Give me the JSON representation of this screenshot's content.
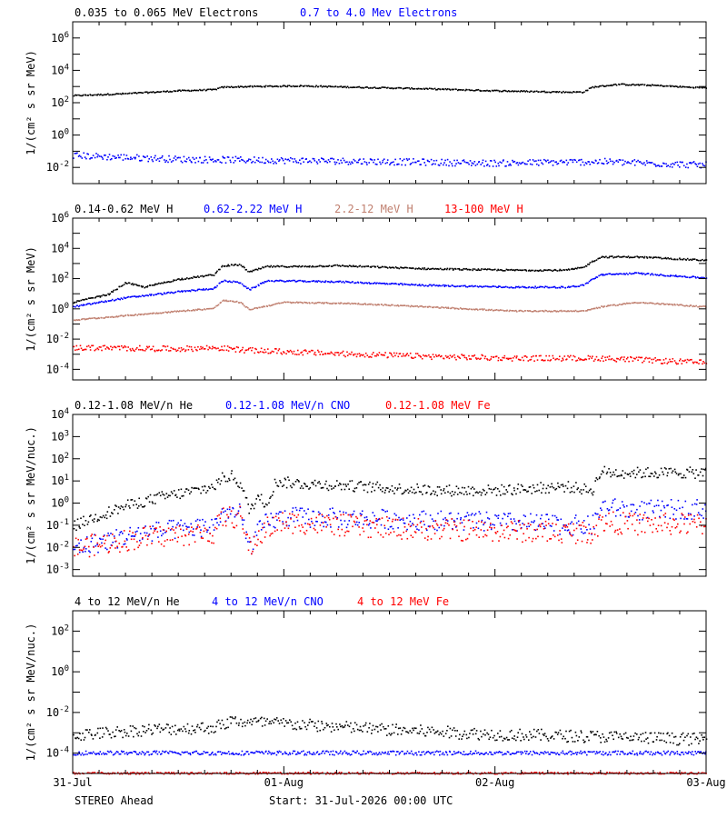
{
  "footer": {
    "spacecraft": "STEREO Ahead",
    "start_label": "Start: 31-Jul-2026 00:00 UTC"
  },
  "chart_data": [
    {
      "type": "scatter",
      "title": "",
      "ylabel": "1/(cm² s sr MeV)",
      "yscale": "log",
      "ylim": [
        0.001,
        10000000
      ],
      "yticks": [
        0.01,
        1,
        100,
        10000,
        1000000
      ],
      "xlim": [
        0,
        72
      ],
      "x_tick_labels": [],
      "legend": [
        {
          "name": "0.035 to 0.065 MeV Electrons",
          "color": "#000000"
        },
        {
          "name": "0.7 to 4.0 Mev Electrons",
          "color": "#0000ff"
        }
      ],
      "series": [
        {
          "name": "0.035 to 0.065 MeV Electrons",
          "color": "#000000",
          "scatter": 0.04,
          "x": [
            0,
            6,
            12,
            16,
            17,
            20,
            26,
            32,
            40,
            48,
            56,
            58,
            59,
            62,
            66,
            70,
            72
          ],
          "y": [
            300,
            400,
            600,
            700,
            1000,
            1100,
            1200,
            1000,
            800,
            600,
            500,
            500,
            1000,
            1500,
            1300,
            1000,
            900
          ]
        },
        {
          "name": "0.7 to 4.0 Mev Electrons",
          "color": "#0000ff",
          "scatter": 0.2,
          "x": [
            0,
            12,
            24,
            36,
            48,
            60,
            72
          ],
          "y": [
            0.06,
            0.035,
            0.03,
            0.025,
            0.02,
            0.025,
            0.015
          ]
        }
      ]
    },
    {
      "type": "scatter",
      "title": "",
      "ylabel": "1/(cm² s sr MeV)",
      "yscale": "log",
      "ylim": [
        2e-05,
        1000000
      ],
      "yticks": [
        0.0001,
        0.01,
        1,
        100,
        10000,
        1000000
      ],
      "xlim": [
        0,
        72
      ],
      "x_tick_labels": [],
      "legend": [
        {
          "name": "0.14-0.62 MeV H",
          "color": "#000000"
        },
        {
          "name": "0.62-2.22 MeV H",
          "color": "#0000ff"
        },
        {
          "name": "2.2-12 MeV H",
          "color": "#c08070"
        },
        {
          "name": "13-100 MeV H",
          "color": "#ff0000"
        }
      ],
      "series": [
        {
          "name": "0.14-0.62 MeV H",
          "color": "#000000",
          "scatter": 0.05,
          "x": [
            0,
            4,
            6,
            8,
            12,
            16,
            17,
            19,
            20,
            22,
            26,
            30,
            40,
            50,
            56,
            58,
            59,
            60,
            64,
            72
          ],
          "y": [
            3,
            10,
            60,
            30,
            100,
            200,
            800,
            900,
            300,
            700,
            700,
            800,
            500,
            400,
            400,
            600,
            1500,
            3000,
            3000,
            1800
          ]
        },
        {
          "name": "0.62-2.22 MeV H",
          "color": "#0000ff",
          "scatter": 0.05,
          "x": [
            0,
            6,
            12,
            16,
            17,
            19,
            20,
            22,
            30,
            40,
            50,
            56,
            58,
            59,
            60,
            64,
            72
          ],
          "y": [
            1.5,
            6,
            15,
            25,
            80,
            60,
            20,
            80,
            70,
            40,
            30,
            30,
            40,
            100,
            200,
            250,
            120
          ]
        },
        {
          "name": "2.2-12 MeV H",
          "color": "#c08070",
          "scatter": 0.04,
          "x": [
            0,
            8,
            16,
            17,
            19,
            20,
            24,
            32,
            40,
            50,
            56,
            58,
            60,
            64,
            72
          ],
          "y": [
            0.2,
            0.5,
            1.2,
            4,
            3,
            1,
            3,
            2.5,
            1.5,
            0.8,
            0.8,
            0.8,
            1.5,
            3,
            1.5
          ]
        },
        {
          "name": "13-100 MeV H",
          "color": "#ff0000",
          "scatter": 0.18,
          "x": [
            0,
            12,
            16,
            20,
            30,
            40,
            50,
            60,
            72
          ],
          "y": [
            0.003,
            0.0025,
            0.003,
            0.002,
            0.0012,
            0.0008,
            0.0006,
            0.0006,
            0.0003
          ]
        }
      ]
    },
    {
      "type": "scatter",
      "title": "",
      "ylabel": "1/(cm² s sr MeV/nuc.)",
      "yscale": "log",
      "ylim": [
        0.0005,
        10000
      ],
      "yticks": [
        0.001,
        0.01,
        0.1,
        1,
        10,
        100,
        1000,
        10000
      ],
      "xlim": [
        0,
        72
      ],
      "x_tick_labels": [],
      "legend": [
        {
          "name": "0.12-1.08 MeV/n He",
          "color": "#000000"
        },
        {
          "name": "0.12-1.08 MeV/n CNO",
          "color": "#0000ff"
        },
        {
          "name": "0.12-1.08 MeV Fe",
          "color": "#ff0000"
        }
      ],
      "series": [
        {
          "name": "0.12-1.08 MeV/n He",
          "color": "#000000",
          "scatter": 0.25,
          "x": [
            0,
            3,
            6,
            10,
            14,
            16,
            17,
            18,
            19,
            20,
            21,
            22,
            23,
            26,
            30,
            36,
            42,
            48,
            56,
            59,
            60,
            61,
            64,
            72
          ],
          "y": [
            0.1,
            0.3,
            0.8,
            2,
            4,
            6,
            15,
            18,
            8,
            0.5,
            2,
            1,
            10,
            8,
            7,
            5,
            4,
            4,
            6,
            4,
            30,
            25,
            25,
            25
          ]
        },
        {
          "name": "0.12-1.08 MeV/n CNO",
          "color": "#0000ff",
          "scatter": 0.45,
          "x": [
            0,
            8,
            16,
            17,
            19,
            20,
            21,
            22,
            24,
            36,
            48,
            59,
            60,
            64,
            72
          ],
          "y": [
            0.01,
            0.05,
            0.1,
            0.4,
            0.35,
            0.01,
            0.05,
            0.15,
            0.25,
            0.2,
            0.15,
            0.1,
            0.7,
            0.5,
            0.6
          ]
        },
        {
          "name": "0.12-1.08 MeV Fe",
          "color": "#ff0000",
          "scatter": 0.5,
          "x": [
            0,
            8,
            16,
            17,
            19,
            20,
            21,
            22,
            24,
            36,
            48,
            59,
            60,
            64,
            72
          ],
          "y": [
            0.01,
            0.03,
            0.05,
            0.25,
            0.25,
            0.01,
            0.03,
            0.08,
            0.15,
            0.08,
            0.06,
            0.05,
            0.15,
            0.12,
            0.12
          ]
        }
      ]
    },
    {
      "type": "scatter",
      "title": "",
      "ylabel": "1/(cm² s sr MeV/nuc.)",
      "yscale": "log",
      "ylim": [
        1e-05,
        1000
      ],
      "yticks": [
        0.0001,
        0.01,
        1,
        100
      ],
      "xlim": [
        0,
        72
      ],
      "x_tick_labels": [
        "31-Jul",
        "01-Aug",
        "02-Aug",
        "03-Aug"
      ],
      "legend": [
        {
          "name": "4 to 12 MeV/n He",
          "color": "#000000"
        },
        {
          "name": "4 to 12 MeV/n CNO",
          "color": "#0000ff"
        },
        {
          "name": "4 to 12 MeV Fe",
          "color": "#ff0000"
        }
      ],
      "series": [
        {
          "name": "4 to 12 MeV/n He",
          "color": "#000000",
          "scatter": 0.3,
          "x": [
            0,
            8,
            16,
            18,
            24,
            36,
            48,
            60,
            72
          ],
          "y": [
            0.0008,
            0.0015,
            0.002,
            0.004,
            0.003,
            0.0015,
            0.0009,
            0.0007,
            0.0005
          ]
        },
        {
          "name": "4 to 12 MeV/n CNO",
          "color": "#0000ff",
          "scatter": 0.1,
          "x": [
            0,
            72
          ],
          "y": [
            0.00011,
            0.00011
          ]
        },
        {
          "name": "4 to 12 MeV Fe",
          "color": "#ff0000",
          "scatter": 0.05,
          "x": [
            0,
            72
          ],
          "y": [
            1.1e-05,
            1.1e-05
          ]
        }
      ]
    }
  ]
}
